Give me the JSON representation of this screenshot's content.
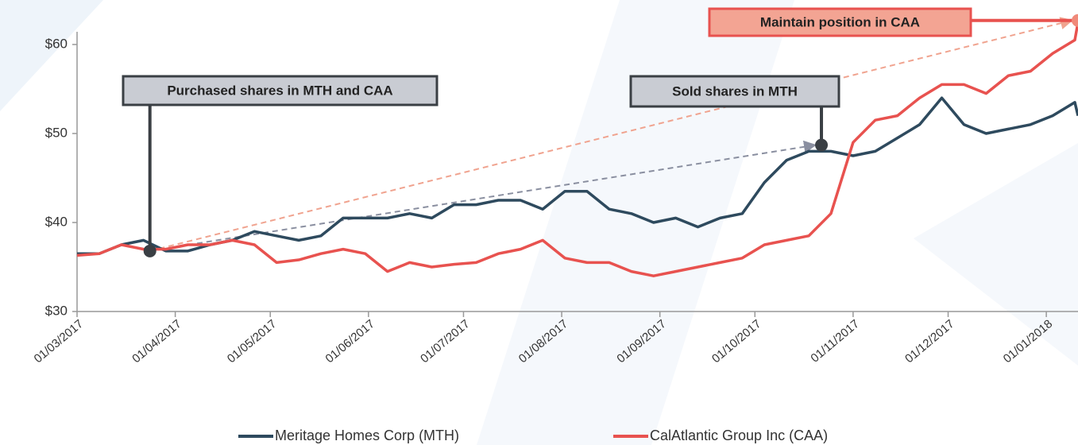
{
  "chart_data": {
    "type": "line",
    "xlim": [
      "2017-03-01",
      "2018-01-11"
    ],
    "xticks": [
      {
        "value": "2017-03-01",
        "label": "01/03/2017"
      },
      {
        "value": "2017-04-01",
        "label": "01/04/2017"
      },
      {
        "value": "2017-05-01",
        "label": "01/05/2017"
      },
      {
        "value": "2017-06-01",
        "label": "01/06/2017"
      },
      {
        "value": "2017-07-01",
        "label": "01/07/2017"
      },
      {
        "value": "2017-08-01",
        "label": "01/08/2017"
      },
      {
        "value": "2017-09-01",
        "label": "01/09/2017"
      },
      {
        "value": "2017-10-01",
        "label": "01/10/2017"
      },
      {
        "value": "2017-11-01",
        "label": "01/11/2017"
      },
      {
        "value": "2017-12-01",
        "label": "01/12/2017"
      },
      {
        "value": "2018-01-01",
        "label": "01/01/2018"
      }
    ],
    "ylim": [
      30,
      65
    ],
    "yticks": [
      {
        "value": 30,
        "label": "$30"
      },
      {
        "value": 40,
        "label": "$40"
      },
      {
        "value": 50,
        "label": "$50"
      },
      {
        "value": 60,
        "label": "$60"
      }
    ],
    "grid": false,
    "legend": "bottom",
    "x": [
      "2017-03-01",
      "2017-03-08",
      "2017-03-15",
      "2017-03-22",
      "2017-03-29",
      "2017-04-05",
      "2017-04-12",
      "2017-04-19",
      "2017-04-26",
      "2017-05-03",
      "2017-05-10",
      "2017-05-17",
      "2017-05-24",
      "2017-05-31",
      "2017-06-07",
      "2017-06-14",
      "2017-06-21",
      "2017-06-28",
      "2017-07-05",
      "2017-07-12",
      "2017-07-19",
      "2017-07-26",
      "2017-08-02",
      "2017-08-09",
      "2017-08-16",
      "2017-08-23",
      "2017-08-30",
      "2017-09-06",
      "2017-09-13",
      "2017-09-20",
      "2017-09-27",
      "2017-10-04",
      "2017-10-11",
      "2017-10-18",
      "2017-10-25",
      "2017-11-01",
      "2017-11-08",
      "2017-11-15",
      "2017-11-22",
      "2017-11-29",
      "2017-12-06",
      "2017-12-13",
      "2017-12-20",
      "2017-12-27",
      "2018-01-03",
      "2018-01-10",
      "2018-01-11"
    ],
    "series": [
      {
        "name": "Meritage Homes Corp (MTH)",
        "color": "#2e4a5e",
        "values": [
          36.5,
          36.5,
          37.5,
          38.0,
          36.8,
          36.8,
          37.5,
          38.0,
          39.0,
          38.5,
          38.0,
          38.5,
          40.5,
          40.5,
          40.5,
          41.0,
          40.5,
          42.0,
          42.0,
          42.5,
          42.5,
          41.5,
          43.5,
          43.5,
          41.5,
          41.0,
          40.0,
          40.5,
          39.5,
          40.5,
          41.0,
          44.5,
          47.0,
          48.0,
          48.0,
          47.5,
          48.0,
          49.5,
          51.0,
          54.0,
          51.0,
          50.0,
          50.5,
          51.0,
          52.0,
          53.5,
          52.0
        ]
      },
      {
        "name": "CalAtlantic Group Inc (CAA)",
        "color": "#e8524f",
        "values": [
          36.3,
          36.5,
          37.5,
          37.0,
          37.0,
          37.5,
          37.5,
          38.0,
          37.5,
          35.5,
          35.8,
          36.5,
          37.0,
          36.5,
          34.5,
          35.5,
          35.0,
          35.3,
          35.5,
          36.5,
          37.0,
          38.0,
          36.0,
          35.5,
          35.5,
          34.5,
          34.0,
          34.5,
          35.0,
          35.5,
          36.0,
          37.5,
          38.0,
          38.5,
          41.0,
          49.0,
          51.5,
          52.0,
          54.0,
          55.5,
          55.5,
          54.5,
          56.5,
          57.0,
          59.0,
          60.5,
          62.5
        ]
      }
    ],
    "annotations": [
      {
        "text": "Purchased shares in MTH and CAA",
        "x": "2017-03-24",
        "y": 36.8,
        "color": "#3a3f44",
        "fill": "#c9ccd3"
      },
      {
        "text": "Sold shares in MTH",
        "x": "2017-10-22",
        "y": 48.7,
        "color": "#3a3f44",
        "fill": "#c9ccd3"
      },
      {
        "text": "Maintain position in CAA",
        "x": "2018-01-11",
        "y": 62.7,
        "color": "#e8524f",
        "fill": "#f3a493"
      }
    ]
  }
}
